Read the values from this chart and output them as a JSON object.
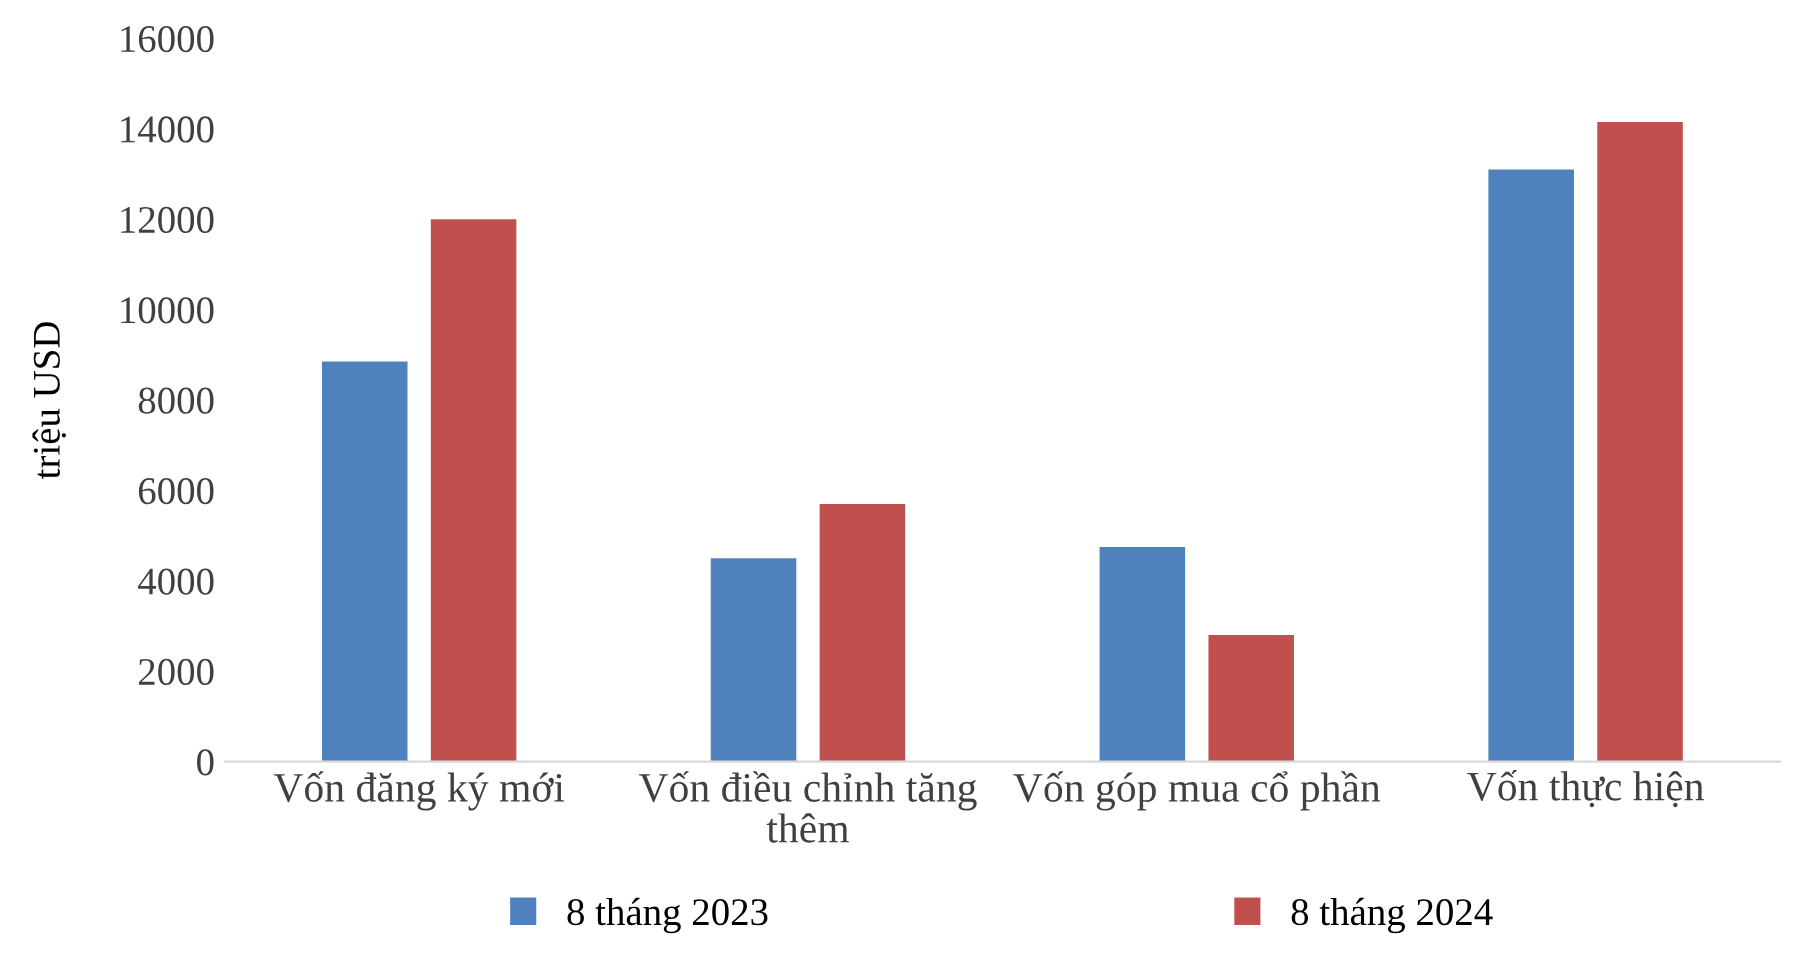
{
  "chart_data": {
    "type": "bar",
    "ylabel": "triệu USD",
    "categories": [
      "Vốn đăng ký mới",
      "Vốn điều chỉnh tăng thêm",
      "Vốn góp mua cổ phần",
      "Vốn thực hiện"
    ],
    "series": [
      {
        "name": "8 tháng 2023",
        "color": "#4f81bd",
        "values": [
          8850,
          4500,
          4750,
          13100
        ]
      },
      {
        "name": "8 tháng 2024",
        "color": "#c0504d",
        "values": [
          12000,
          5700,
          2800,
          14150
        ]
      }
    ],
    "ylim": [
      0,
      16000
    ],
    "yticks": [
      0,
      2000,
      4000,
      6000,
      8000,
      10000,
      12000,
      14000,
      16000
    ],
    "grid": false,
    "legend": "bottom"
  }
}
